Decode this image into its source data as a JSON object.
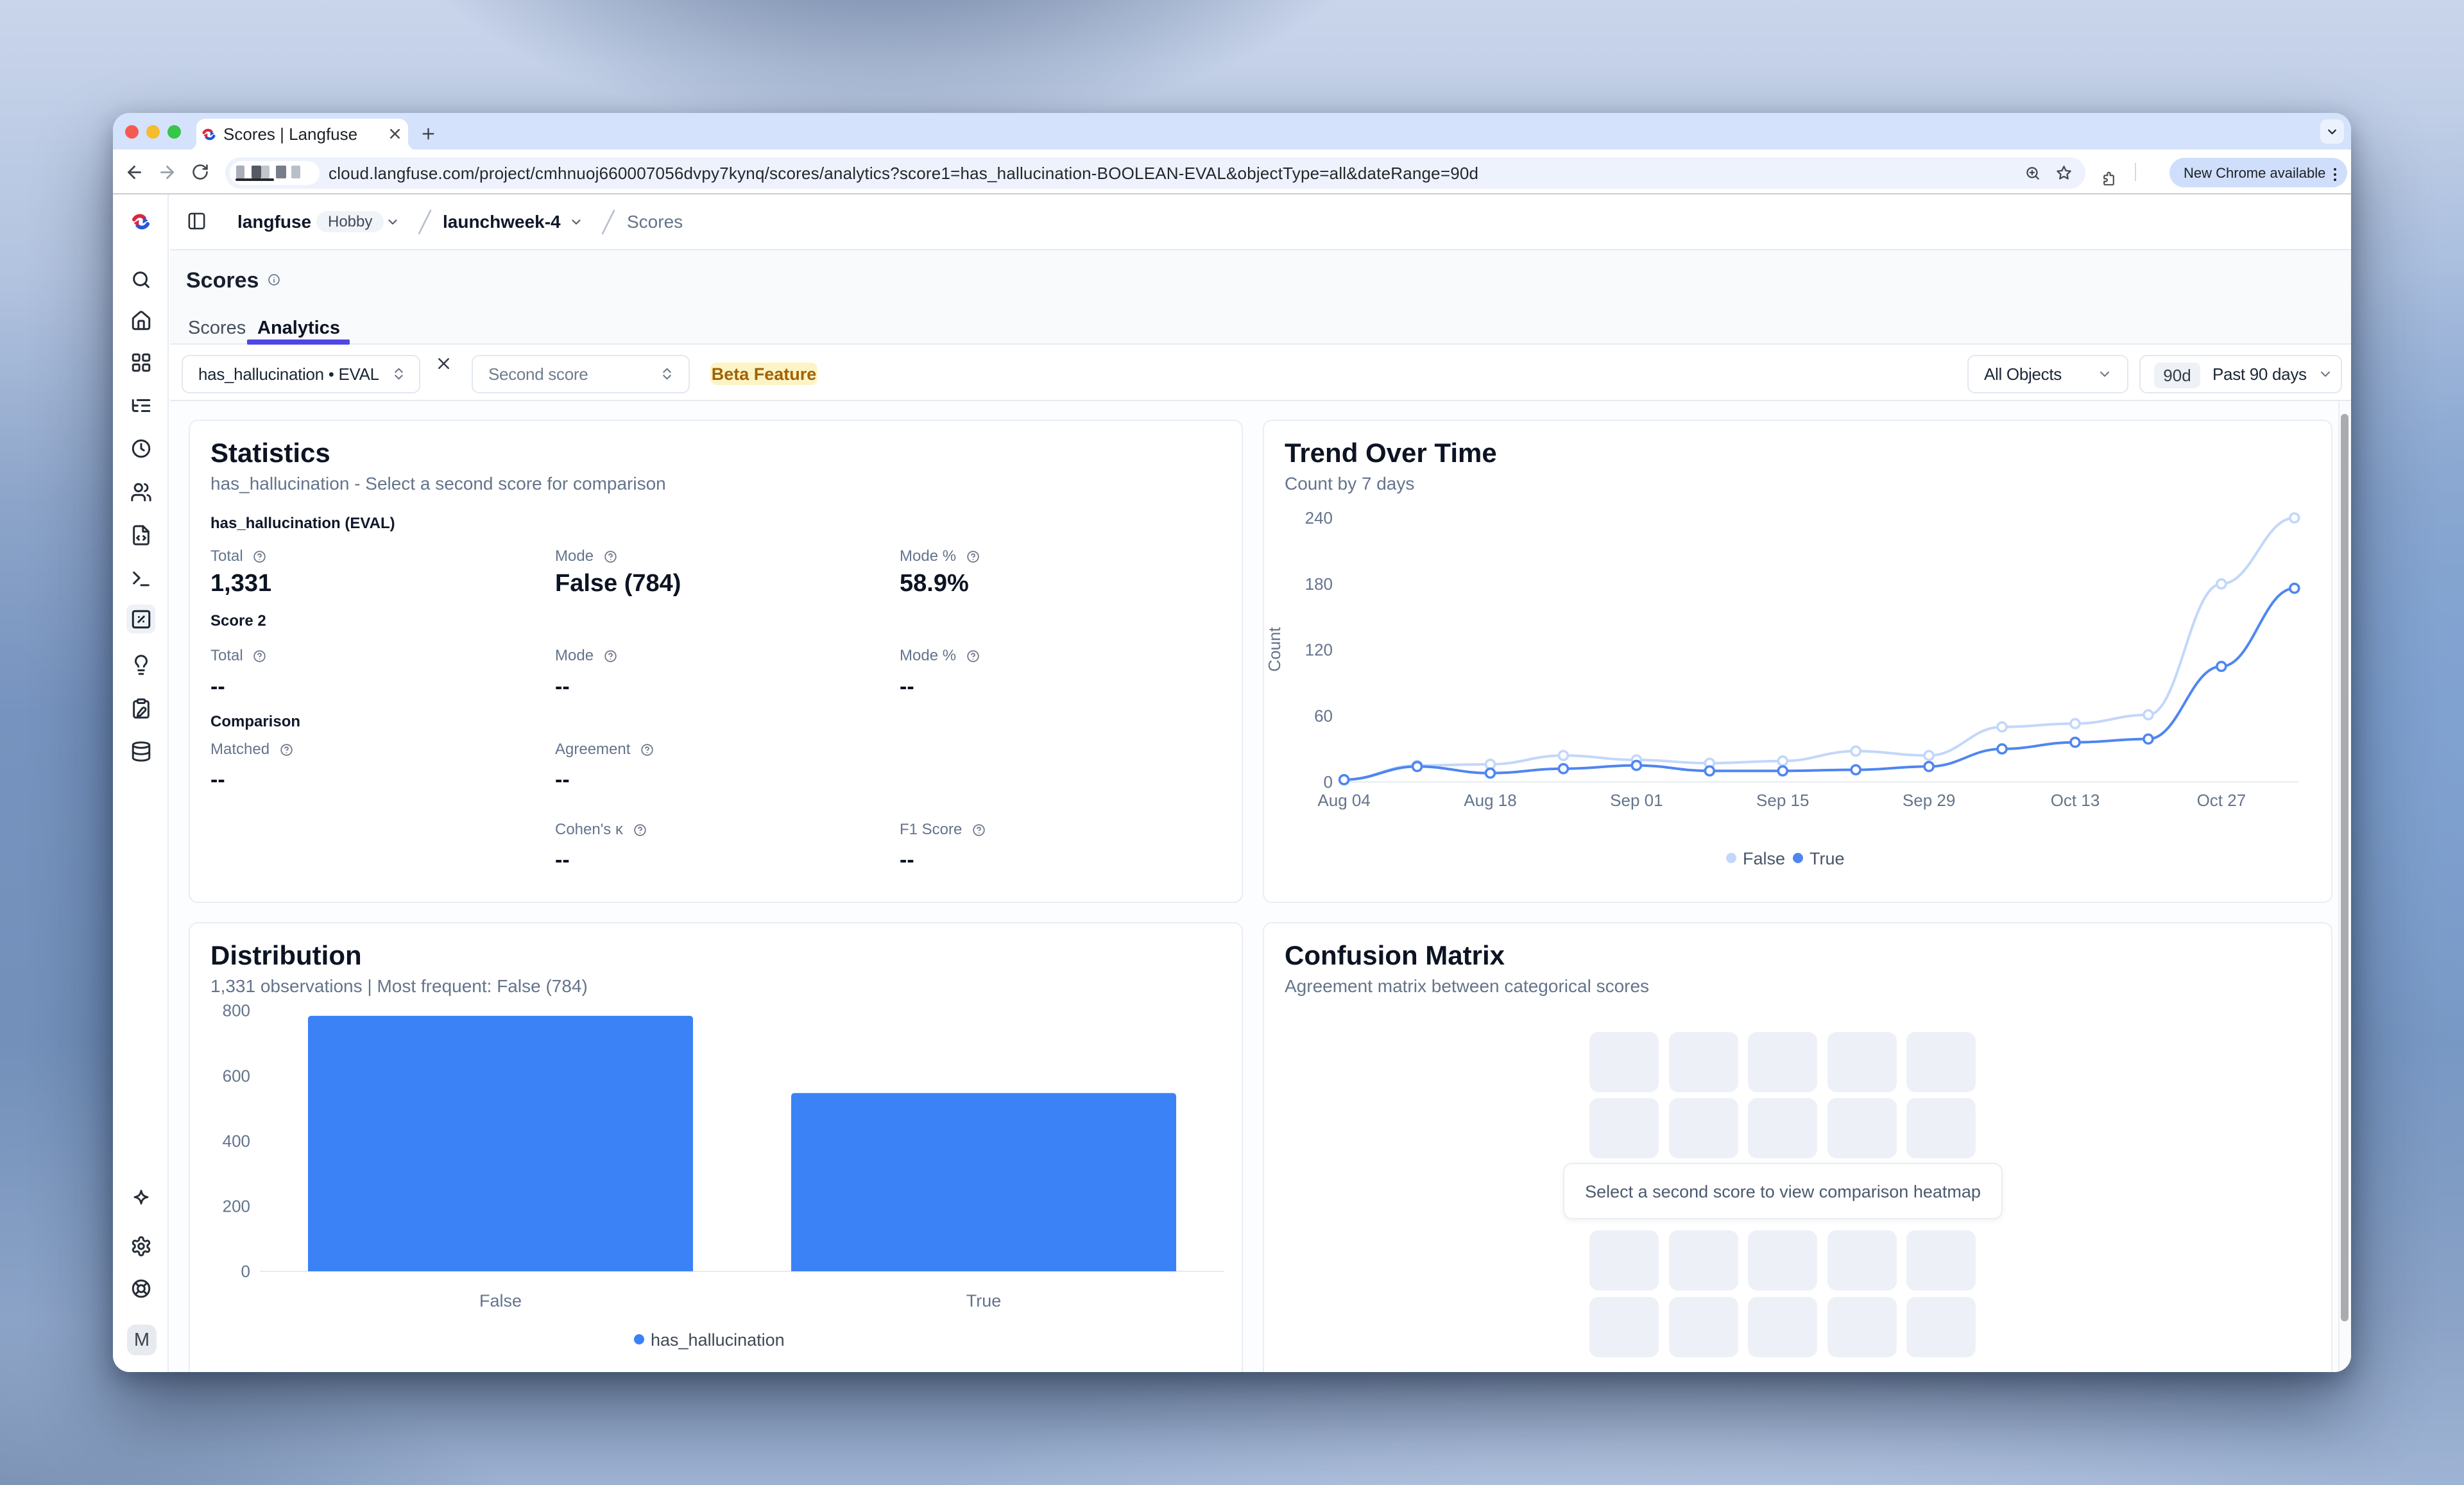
{
  "browser": {
    "tab_title": "Scores | Langfuse",
    "url": "cloud.langfuse.com/project/cmhnuoj660007056dvpy7kynq/scores/analytics?score1=has_hallucination-BOOLEAN-EVAL&objectType=all&dateRange=90d",
    "update_pill_label": "New Chrome available"
  },
  "header": {
    "org": "langfuse",
    "plan_badge": "Hobby",
    "project": "launchweek-4",
    "page": "Scores"
  },
  "sidebar": {
    "items": [
      {
        "icon": "search"
      },
      {
        "icon": "home"
      },
      {
        "icon": "grid"
      },
      {
        "icon": "listtree"
      },
      {
        "icon": "clock"
      },
      {
        "icon": "users"
      },
      {
        "icon": "filecode"
      },
      {
        "icon": "terminal"
      },
      {
        "icon": "squarepercent",
        "active": true
      },
      {
        "icon": "lightbulb"
      },
      {
        "icon": "clipboardpen"
      },
      {
        "icon": "database"
      }
    ],
    "bottom_items": [
      {
        "icon": "sparkles"
      },
      {
        "icon": "settings"
      },
      {
        "icon": "lifebuoy"
      }
    ],
    "profile_initial": "M"
  },
  "page": {
    "title": "Scores",
    "tabs": [
      {
        "label": "Scores"
      },
      {
        "label": "Analytics"
      }
    ],
    "filters": {
      "score1_value": "has_hallucination • EVAL",
      "score2_placeholder": "Second score",
      "beta_badge": "Beta Feature",
      "object_filter_value": "All Objects",
      "date_badge": "90d",
      "date_value": "Past 90 days"
    }
  },
  "statistics_card": {
    "title": "Statistics",
    "subtitle": "has_hallucination - Select a second score for comparison",
    "sections": [
      {
        "header": "has_hallucination (EVAL)",
        "row_offset": 0,
        "metrics": [
          {
            "label": "Total",
            "value": "1,331",
            "col": 0,
            "row": 0,
            "big": true
          },
          {
            "label": "Mode",
            "value": "False (784)",
            "col": 1,
            "row": 0,
            "big": true
          },
          {
            "label": "Mode %",
            "value": "58.9%",
            "col": 2,
            "row": 0,
            "big": true
          }
        ]
      },
      {
        "header": "Score 2",
        "row_offset": 1,
        "metrics": [
          {
            "label": "Total",
            "value": "--",
            "col": 0,
            "row": 1
          },
          {
            "label": "Mode",
            "value": "--",
            "col": 1,
            "row": 1
          },
          {
            "label": "Mode %",
            "value": "--",
            "col": 2,
            "row": 1
          }
        ]
      },
      {
        "header": "Comparison",
        "row_offset": 2,
        "metrics": [
          {
            "label": "Matched",
            "value": "--",
            "col": 0,
            "row": 2
          },
          {
            "label": "Agreement",
            "value": "--",
            "col": 1,
            "row": 2
          },
          {
            "label": "Cohen's κ",
            "value": "--",
            "col": 1,
            "row": 3
          },
          {
            "label": "F1 Score",
            "value": "--",
            "col": 2,
            "row": 3
          }
        ]
      }
    ]
  },
  "confusion_card": {
    "title": "Confusion Matrix",
    "subtitle": "Agreement matrix between categorical scores",
    "placeholder_text": "Select a second score to view comparison heatmap"
  },
  "chart_data": [
    {
      "type": "line",
      "title": "Trend Over Time",
      "subtitle": "Count by 7 days",
      "xlabel": "",
      "ylabel": "Count",
      "x": [
        "Aug 04",
        "Aug 11",
        "Aug 18",
        "Aug 25",
        "Sep 01",
        "Sep 08",
        "Sep 15",
        "Sep 22",
        "Sep 29",
        "Oct 06",
        "Oct 13",
        "Oct 20",
        "Oct 27",
        "Nov 03"
      ],
      "x_tick_labels": [
        "Aug 04",
        "Aug 18",
        "Sep 01",
        "Sep 15",
        "Sep 29",
        "Oct 13",
        "Oct 27"
      ],
      "ylim": [
        0,
        240
      ],
      "yticks": [
        0,
        60,
        120,
        180,
        240
      ],
      "grid": false,
      "legend_position": "bottom",
      "series": [
        {
          "name": "False",
          "color": "#c2d7fa",
          "values": [
            2,
            15,
            16,
            24,
            20,
            17,
            19,
            28,
            24,
            50,
            53,
            61,
            180,
            240
          ]
        },
        {
          "name": "True",
          "color": "#4f86f0",
          "values": [
            2,
            14,
            8,
            12,
            15,
            10,
            10,
            11,
            14,
            30,
            36,
            39,
            105,
            176
          ]
        }
      ]
    },
    {
      "type": "bar",
      "title": "Distribution",
      "subtitle": "1,331 observations | Most frequent: False (784)",
      "categories": [
        "False",
        "True"
      ],
      "values": [
        784,
        547
      ],
      "series_name": "has_hallucination",
      "bar_color": "#3b82f6",
      "ylim": [
        0,
        800
      ],
      "yticks": [
        0,
        200,
        400,
        600,
        800
      ],
      "grid": false,
      "legend_position": "bottom"
    }
  ]
}
